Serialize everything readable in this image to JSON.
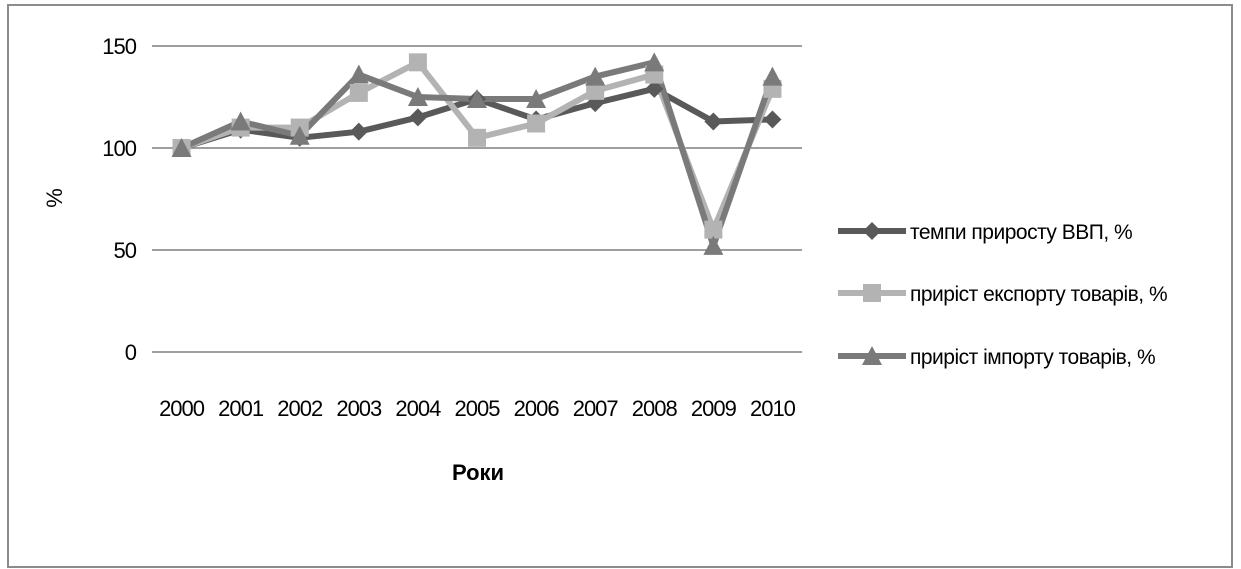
{
  "chart_data": {
    "type": "line",
    "title": "",
    "xlabel": "Роки",
    "ylabel": "%",
    "ylim": [
      0,
      150
    ],
    "yticks": [
      "0",
      "50",
      "100",
      "150"
    ],
    "grid": true,
    "legend_position": "right",
    "categories": [
      "2000",
      "2001",
      "2002",
      "2003",
      "2004",
      "2005",
      "2006",
      "2007",
      "2008",
      "2009",
      "2010"
    ],
    "series": [
      {
        "name": "темпи приросту ВВП, %",
        "marker": "diamond",
        "color": "#595959",
        "values": [
          100,
          109,
          105,
          108,
          115,
          124,
          114,
          122,
          129,
          113,
          114
        ]
      },
      {
        "name": "приріст експорту товарів, %",
        "marker": "square",
        "color": "#b3b3b3",
        "values": [
          100,
          110,
          110,
          127,
          142,
          105,
          112,
          128,
          136,
          60,
          129
        ]
      },
      {
        "name": "приріст імпорту товарів, %",
        "marker": "triangle",
        "color": "#7a7a7a",
        "values": [
          100,
          113,
          106,
          136,
          125,
          124,
          124,
          135,
          142,
          52,
          135
        ]
      }
    ]
  }
}
